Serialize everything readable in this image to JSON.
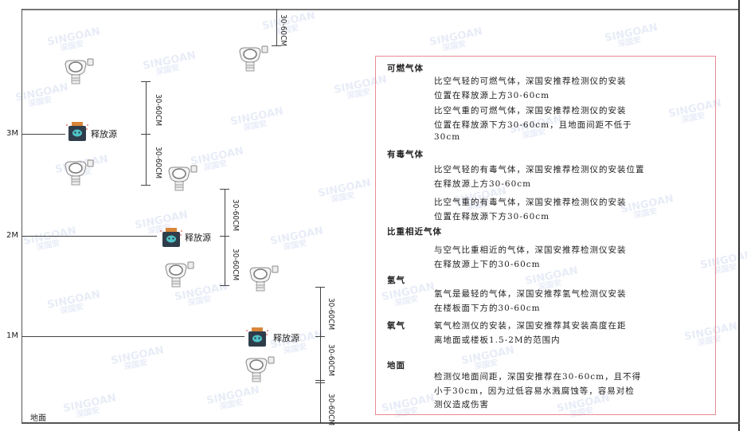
{
  "watermark": {
    "brand": "SINGOAN",
    "chinese": "深国安"
  },
  "levels": [
    "3M",
    "2M",
    "1M"
  ],
  "ground_label": "地面",
  "source_label": "释放源",
  "dimension_label": "30-60CM",
  "info": {
    "sections": [
      {
        "title": "可燃气体",
        "paragraphs": [
          [
            "比空气轻的可燃气体，深国安推荐检测仪的安装",
            "位置在释放源上方30-60cm"
          ],
          [
            "比空气重的可燃气体，深国安推荐检测仪的安装",
            "位置在释放源下方30-60cm，且地面间距不低于",
            "30cm"
          ]
        ]
      },
      {
        "title": "有毒气体",
        "paragraphs": [
          [
            "比空气轻的有毒气体，深国安推荐检测仪的安装位置",
            "在释放源上方30-60cm"
          ],
          [
            "比空气重的有毒气体，深国安推荐检测仪的安装",
            "位置在释放源下方30-60cm"
          ]
        ]
      },
      {
        "title": "比重相近气体",
        "paragraphs": [
          [
            "与空气比重相近的气体，深国安推荐检测仪安装",
            "在释放源上下的30-60cm"
          ]
        ]
      },
      {
        "title": "氢气",
        "paragraphs": [
          [
            "氢气是最轻的气体，深国安推荐氢气检测仪安装",
            "在楼板面下方的30-60cm"
          ]
        ]
      },
      {
        "title": "氧气",
        "paragraphs": [
          [
            "氧气检测仪的安装，深国安推荐其安装高度在距",
            "离地面或楼板1.5-2M的范围内"
          ]
        ]
      },
      {
        "title": "地面",
        "paragraphs": [
          [
            "检测仪地面间距，深国安推荐在30-60cm，且不得",
            "小于30cm，因为过低容易水溅腐蚀等，容易对检",
            "测仪造成伤害"
          ]
        ]
      }
    ]
  },
  "colors": {
    "box_border": "#e88a92",
    "source_body": "#2f3d4a",
    "source_cap": "#d9863a",
    "source_face": "#4fc3c8"
  }
}
